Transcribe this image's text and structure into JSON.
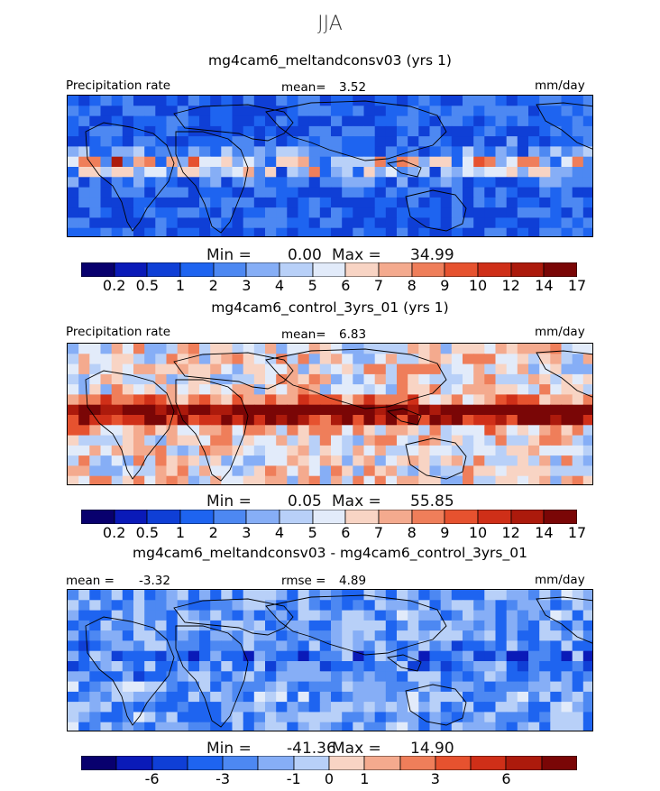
{
  "season": "JJA",
  "colors": [
    "#08006e",
    "#0a1ab8",
    "#0f3fd6",
    "#1e64f0",
    "#4d88f2",
    "#86aef6",
    "#b8d0f8",
    "#e2ebfa",
    "#f8d4c4",
    "#f4aa8e",
    "#ef7e5a",
    "#e6522f",
    "#cf2f18",
    "#ac1a0c",
    "#7a0606"
  ],
  "panels": [
    {
      "title": "mg4cam6_meltandconsv03 (yrs 1)",
      "left_label": "Precipitation rate",
      "center_label": "mean=",
      "center_value": "3.52",
      "units": "mm/day",
      "min_label": "Min =",
      "min_value": "0.00",
      "max_label": "Max =",
      "max_value": "34.99",
      "colorbar_ticks": [
        "0.2",
        "0.5",
        "1",
        "2",
        "3",
        "4",
        "5",
        "6",
        "7",
        "8",
        "9",
        "10",
        "12",
        "14",
        "17"
      ],
      "dominant": "blue"
    },
    {
      "title": "mg4cam6_control_3yrs_01 (yrs 1)",
      "left_label": "Precipitation rate",
      "center_label": "mean=",
      "center_value": "6.83",
      "units": "mm/day",
      "min_label": "Min =",
      "min_value": "0.05",
      "max_label": "Max =",
      "max_value": "55.85",
      "colorbar_ticks": [
        "0.2",
        "0.5",
        "1",
        "2",
        "3",
        "4",
        "5",
        "6",
        "7",
        "8",
        "9",
        "10",
        "12",
        "14",
        "17"
      ],
      "dominant": "red"
    },
    {
      "title": "mg4cam6_meltandconsv03 - mg4cam6_control_3yrs_01",
      "left_label": "mean =",
      "left_value": "-3.32",
      "center_label": "rmse =",
      "center_value": "4.89",
      "units": "mm/day",
      "min_label": "Min =",
      "min_value": "-41.36",
      "max_label": "Max =",
      "max_value": "14.90",
      "colorbar_ticks": [
        "-6",
        "-3",
        "-1",
        "0",
        "1",
        "3",
        "6"
      ],
      "dominant": "blue"
    }
  ]
}
